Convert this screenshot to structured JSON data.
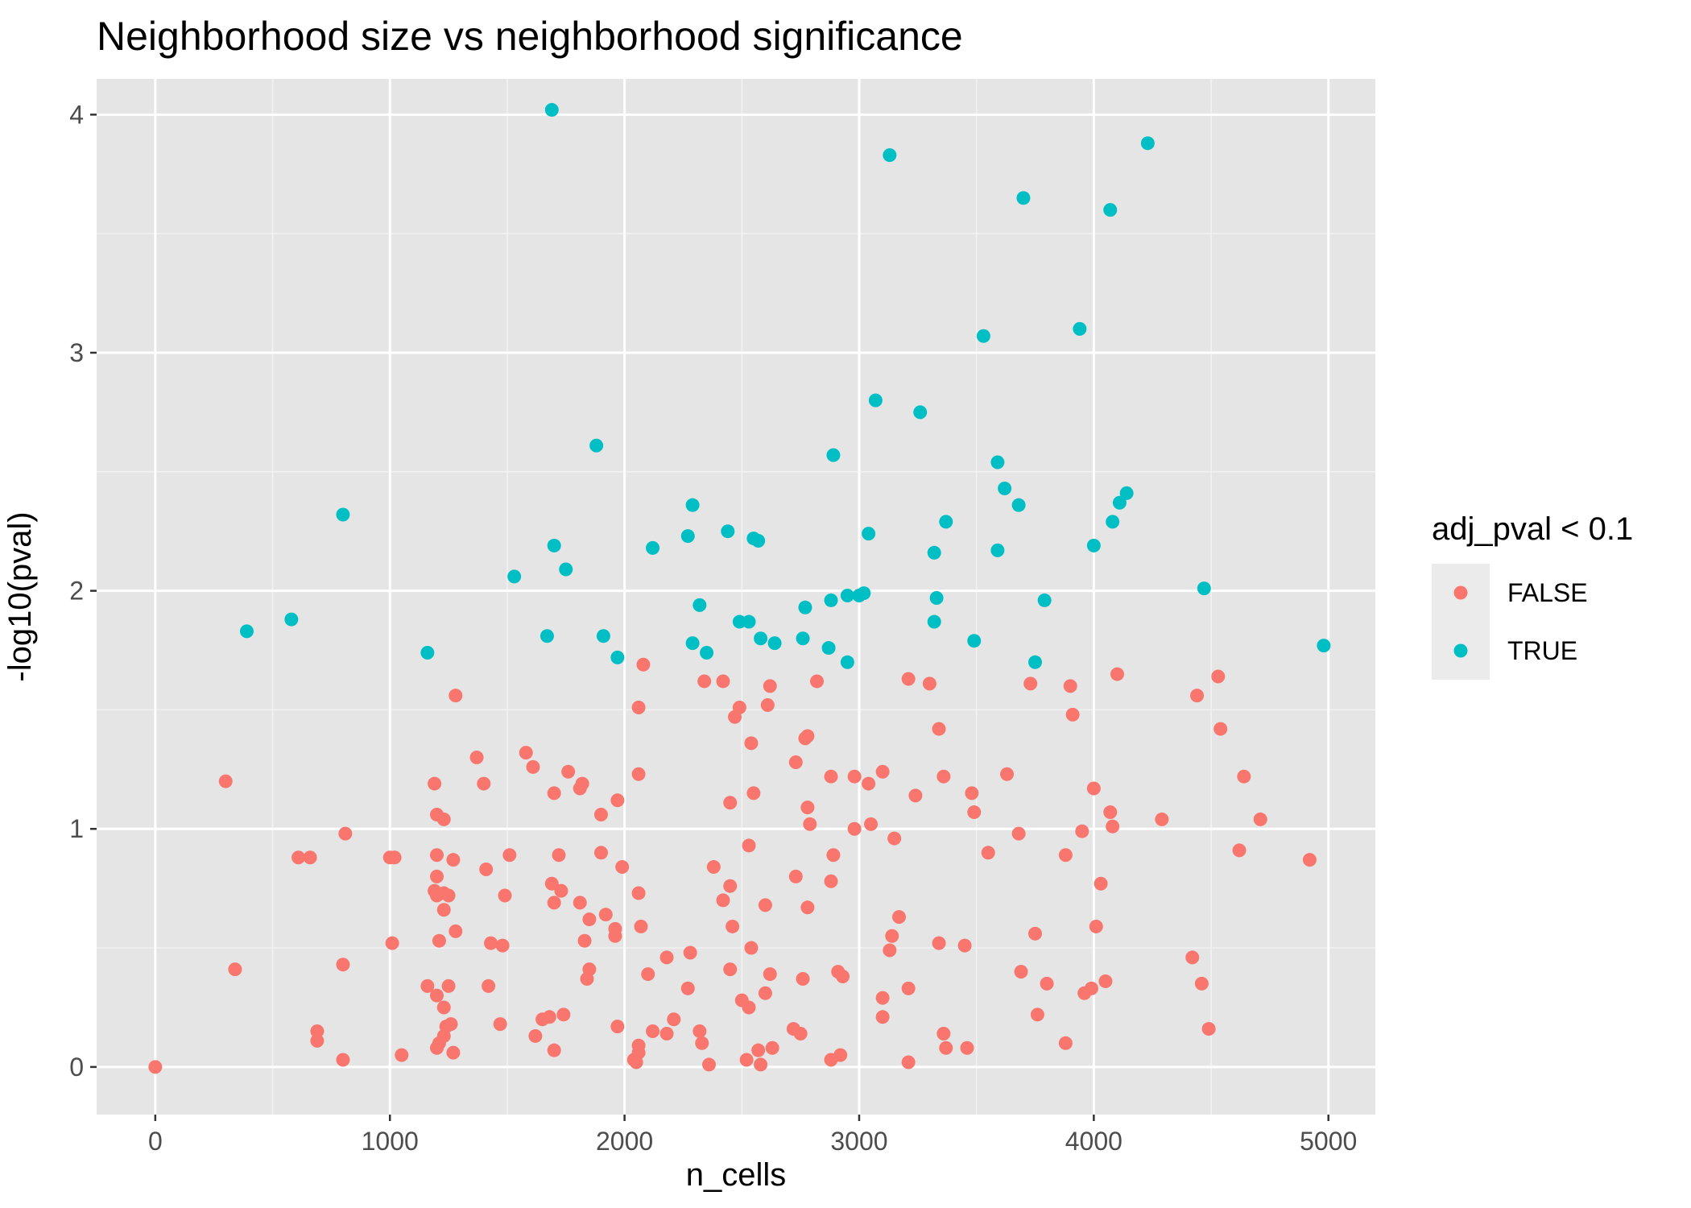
{
  "chart_data": {
    "type": "scatter",
    "title": "Neighborhood size vs neighborhood significance",
    "xlabel": "n_cells",
    "ylabel": "-log10(pval)",
    "xlim": [
      -250,
      5200
    ],
    "ylim": [
      -0.2,
      4.15
    ],
    "x_ticks": [
      0,
      1000,
      2000,
      3000,
      4000,
      5000
    ],
    "x_tick_labels": [
      "0",
      "1000",
      "2000",
      "3000",
      "4000",
      "5000"
    ],
    "y_ticks": [
      0,
      1,
      2,
      3,
      4
    ],
    "y_tick_labels": [
      "0",
      "1",
      "2",
      "3",
      "4"
    ],
    "grid": true,
    "panel_background": "#e5e5e5",
    "legend": {
      "title": "adj_pval < 0.1",
      "position": "right",
      "entries": [
        {
          "label": "FALSE",
          "color": "#f8766d"
        },
        {
          "label": "TRUE",
          "color": "#00bfc4"
        }
      ]
    },
    "series": [
      {
        "name": "FALSE",
        "color": "#f8766d",
        "points": [
          [
            0,
            0
          ],
          [
            300,
            1.2
          ],
          [
            340,
            0.41
          ],
          [
            610,
            0.88
          ],
          [
            660,
            0.88
          ],
          [
            690,
            0.15
          ],
          [
            690,
            0.11
          ],
          [
            800,
            0.43
          ],
          [
            800,
            0.03
          ],
          [
            810,
            0.98
          ],
          [
            1000,
            0.88
          ],
          [
            1020,
            0.88
          ],
          [
            1010,
            0.52
          ],
          [
            1050,
            0.05
          ],
          [
            1160,
            0.34
          ],
          [
            1190,
            1.19
          ],
          [
            1200,
            1.06
          ],
          [
            1190,
            0.74
          ],
          [
            1200,
            0.89
          ],
          [
            1200,
            0.8
          ],
          [
            1200,
            0.72
          ],
          [
            1210,
            0.53
          ],
          [
            1200,
            0.3
          ],
          [
            1200,
            0.08
          ],
          [
            1210,
            0.1
          ],
          [
            1230,
            1.04
          ],
          [
            1230,
            0.73
          ],
          [
            1230,
            0.66
          ],
          [
            1230,
            0.25
          ],
          [
            1230,
            0.13
          ],
          [
            1250,
            0.72
          ],
          [
            1250,
            0.34
          ],
          [
            1240,
            0.17
          ],
          [
            1260,
            0.18
          ],
          [
            1270,
            0.87
          ],
          [
            1280,
            0.57
          ],
          [
            1270,
            0.06
          ],
          [
            1280,
            1.56
          ],
          [
            1370,
            1.3
          ],
          [
            1400,
            1.19
          ],
          [
            1410,
            0.83
          ],
          [
            1420,
            0.34
          ],
          [
            1430,
            0.52
          ],
          [
            1470,
            0.18
          ],
          [
            1480,
            0.51
          ],
          [
            1490,
            0.72
          ],
          [
            1510,
            0.89
          ],
          [
            1580,
            1.32
          ],
          [
            1610,
            1.26
          ],
          [
            1620,
            0.13
          ],
          [
            1650,
            0.2
          ],
          [
            1680,
            0.21
          ],
          [
            1690,
            0.77
          ],
          [
            1700,
            1.15
          ],
          [
            1700,
            0.69
          ],
          [
            1700,
            0.07
          ],
          [
            1720,
            0.89
          ],
          [
            1730,
            0.74
          ],
          [
            1740,
            0.22
          ],
          [
            1760,
            1.24
          ],
          [
            1810,
            1.17
          ],
          [
            1820,
            1.19
          ],
          [
            1810,
            0.69
          ],
          [
            1830,
            0.53
          ],
          [
            1840,
            0.37
          ],
          [
            1850,
            0.41
          ],
          [
            1850,
            0.62
          ],
          [
            1900,
            1.06
          ],
          [
            1900,
            0.9
          ],
          [
            1920,
            0.64
          ],
          [
            1960,
            0.58
          ],
          [
            1960,
            0.55
          ],
          [
            1970,
            1.12
          ],
          [
            1970,
            0.17
          ],
          [
            1990,
            0.84
          ],
          [
            2040,
            0.03
          ],
          [
            2050,
            0.02
          ],
          [
            2060,
            0.06
          ],
          [
            2060,
            0.09
          ],
          [
            2060,
            1.51
          ],
          [
            2060,
            1.23
          ],
          [
            2060,
            0.73
          ],
          [
            2070,
            0.59
          ],
          [
            2080,
            1.69
          ],
          [
            2100,
            0.39
          ],
          [
            2120,
            0.15
          ],
          [
            2180,
            0.14
          ],
          [
            2180,
            0.46
          ],
          [
            2210,
            0.2
          ],
          [
            2270,
            0.33
          ],
          [
            2280,
            0.48
          ],
          [
            2320,
            0.15
          ],
          [
            2330,
            0.1
          ],
          [
            2340,
            1.62
          ],
          [
            2360,
            0.01
          ],
          [
            2380,
            0.84
          ],
          [
            2420,
            1.62
          ],
          [
            2420,
            0.7
          ],
          [
            2450,
            1.11
          ],
          [
            2450,
            0.76
          ],
          [
            2450,
            0.41
          ],
          [
            2460,
            0.59
          ],
          [
            2470,
            1.47
          ],
          [
            2490,
            1.51
          ],
          [
            2500,
            0.28
          ],
          [
            2520,
            0.03
          ],
          [
            2530,
            0.93
          ],
          [
            2530,
            0.25
          ],
          [
            2540,
            1.36
          ],
          [
            2540,
            0.5
          ],
          [
            2550,
            1.15
          ],
          [
            2570,
            0.07
          ],
          [
            2580,
            0.01
          ],
          [
            2600,
            0.31
          ],
          [
            2600,
            0.68
          ],
          [
            2610,
            1.52
          ],
          [
            2620,
            1.6
          ],
          [
            2620,
            0.39
          ],
          [
            2630,
            0.08
          ],
          [
            2730,
            1.28
          ],
          [
            2730,
            0.8
          ],
          [
            2720,
            0.16
          ],
          [
            2750,
            0.14
          ],
          [
            2760,
            0.37
          ],
          [
            2770,
            1.38
          ],
          [
            2780,
            1.39
          ],
          [
            2780,
            1.09
          ],
          [
            2790,
            1.02
          ],
          [
            2780,
            0.67
          ],
          [
            2820,
            1.62
          ],
          [
            2880,
            1.22
          ],
          [
            2880,
            0.78
          ],
          [
            2890,
            0.89
          ],
          [
            2880,
            0.03
          ],
          [
            2910,
            0.4
          ],
          [
            2920,
            0.05
          ],
          [
            2930,
            0.38
          ],
          [
            2980,
            1.22
          ],
          [
            2980,
            1.0
          ],
          [
            3040,
            1.19
          ],
          [
            3050,
            1.02
          ],
          [
            3100,
            1.24
          ],
          [
            3100,
            0.29
          ],
          [
            3100,
            0.21
          ],
          [
            3130,
            0.49
          ],
          [
            3140,
            0.55
          ],
          [
            3150,
            0.96
          ],
          [
            3170,
            0.63
          ],
          [
            3210,
            1.63
          ],
          [
            3210,
            0.33
          ],
          [
            3210,
            0.02
          ],
          [
            3240,
            1.14
          ],
          [
            3300,
            1.61
          ],
          [
            3340,
            1.42
          ],
          [
            3340,
            0.52
          ],
          [
            3360,
            1.22
          ],
          [
            3360,
            0.14
          ],
          [
            3370,
            0.08
          ],
          [
            3450,
            0.51
          ],
          [
            3460,
            0.08
          ],
          [
            3480,
            1.15
          ],
          [
            3490,
            1.07
          ],
          [
            3550,
            0.9
          ],
          [
            3630,
            1.23
          ],
          [
            3680,
            0.98
          ],
          [
            3690,
            0.4
          ],
          [
            3730,
            1.61
          ],
          [
            3750,
            0.56
          ],
          [
            3760,
            0.22
          ],
          [
            3800,
            0.35
          ],
          [
            3880,
            0.89
          ],
          [
            3880,
            0.1
          ],
          [
            3900,
            1.6
          ],
          [
            3910,
            1.48
          ],
          [
            3950,
            0.99
          ],
          [
            3960,
            0.31
          ],
          [
            3990,
            0.33
          ],
          [
            4000,
            1.17
          ],
          [
            4010,
            0.59
          ],
          [
            4030,
            0.77
          ],
          [
            4050,
            0.36
          ],
          [
            4070,
            1.07
          ],
          [
            4080,
            1.01
          ],
          [
            4100,
            1.65
          ],
          [
            4290,
            1.04
          ],
          [
            4420,
            0.46
          ],
          [
            4440,
            1.56
          ],
          [
            4460,
            0.35
          ],
          [
            4490,
            0.16
          ],
          [
            4530,
            1.64
          ],
          [
            4540,
            1.42
          ],
          [
            4620,
            0.91
          ],
          [
            4640,
            1.22
          ],
          [
            4710,
            1.04
          ],
          [
            4920,
            0.87
          ]
        ]
      },
      {
        "name": "TRUE",
        "color": "#00bfc4",
        "points": [
          [
            390,
            1.83
          ],
          [
            580,
            1.88
          ],
          [
            800,
            2.32
          ],
          [
            1160,
            1.74
          ],
          [
            1530,
            2.06
          ],
          [
            1670,
            1.81
          ],
          [
            1690,
            4.02
          ],
          [
            1700,
            2.19
          ],
          [
            1750,
            2.09
          ],
          [
            1880,
            2.61
          ],
          [
            1910,
            1.81
          ],
          [
            1970,
            1.72
          ],
          [
            2120,
            2.18
          ],
          [
            2270,
            2.23
          ],
          [
            2290,
            1.78
          ],
          [
            2290,
            2.36
          ],
          [
            2320,
            1.94
          ],
          [
            2350,
            1.74
          ],
          [
            2440,
            2.25
          ],
          [
            2490,
            1.87
          ],
          [
            2530,
            1.87
          ],
          [
            2550,
            2.22
          ],
          [
            2570,
            2.21
          ],
          [
            2580,
            1.8
          ],
          [
            2640,
            1.78
          ],
          [
            2760,
            1.8
          ],
          [
            2770,
            1.93
          ],
          [
            2870,
            1.76
          ],
          [
            2880,
            1.96
          ],
          [
            2890,
            2.57
          ],
          [
            2950,
            1.7
          ],
          [
            2950,
            1.98
          ],
          [
            3000,
            1.98
          ],
          [
            3020,
            1.99
          ],
          [
            3040,
            2.24
          ],
          [
            3070,
            2.8
          ],
          [
            3130,
            3.83
          ],
          [
            3260,
            2.75
          ],
          [
            3320,
            2.16
          ],
          [
            3320,
            1.87
          ],
          [
            3330,
            1.97
          ],
          [
            3370,
            2.29
          ],
          [
            3490,
            1.79
          ],
          [
            3530,
            3.07
          ],
          [
            3590,
            2.54
          ],
          [
            3590,
            2.17
          ],
          [
            3620,
            2.43
          ],
          [
            3680,
            2.36
          ],
          [
            3700,
            3.65
          ],
          [
            3750,
            1.7
          ],
          [
            3790,
            1.96
          ],
          [
            3940,
            3.1
          ],
          [
            4000,
            2.19
          ],
          [
            4070,
            3.6
          ],
          [
            4080,
            2.29
          ],
          [
            4110,
            2.37
          ],
          [
            4140,
            2.41
          ],
          [
            4230,
            3.88
          ],
          [
            4470,
            2.01
          ],
          [
            4980,
            1.77
          ]
        ]
      }
    ]
  }
}
